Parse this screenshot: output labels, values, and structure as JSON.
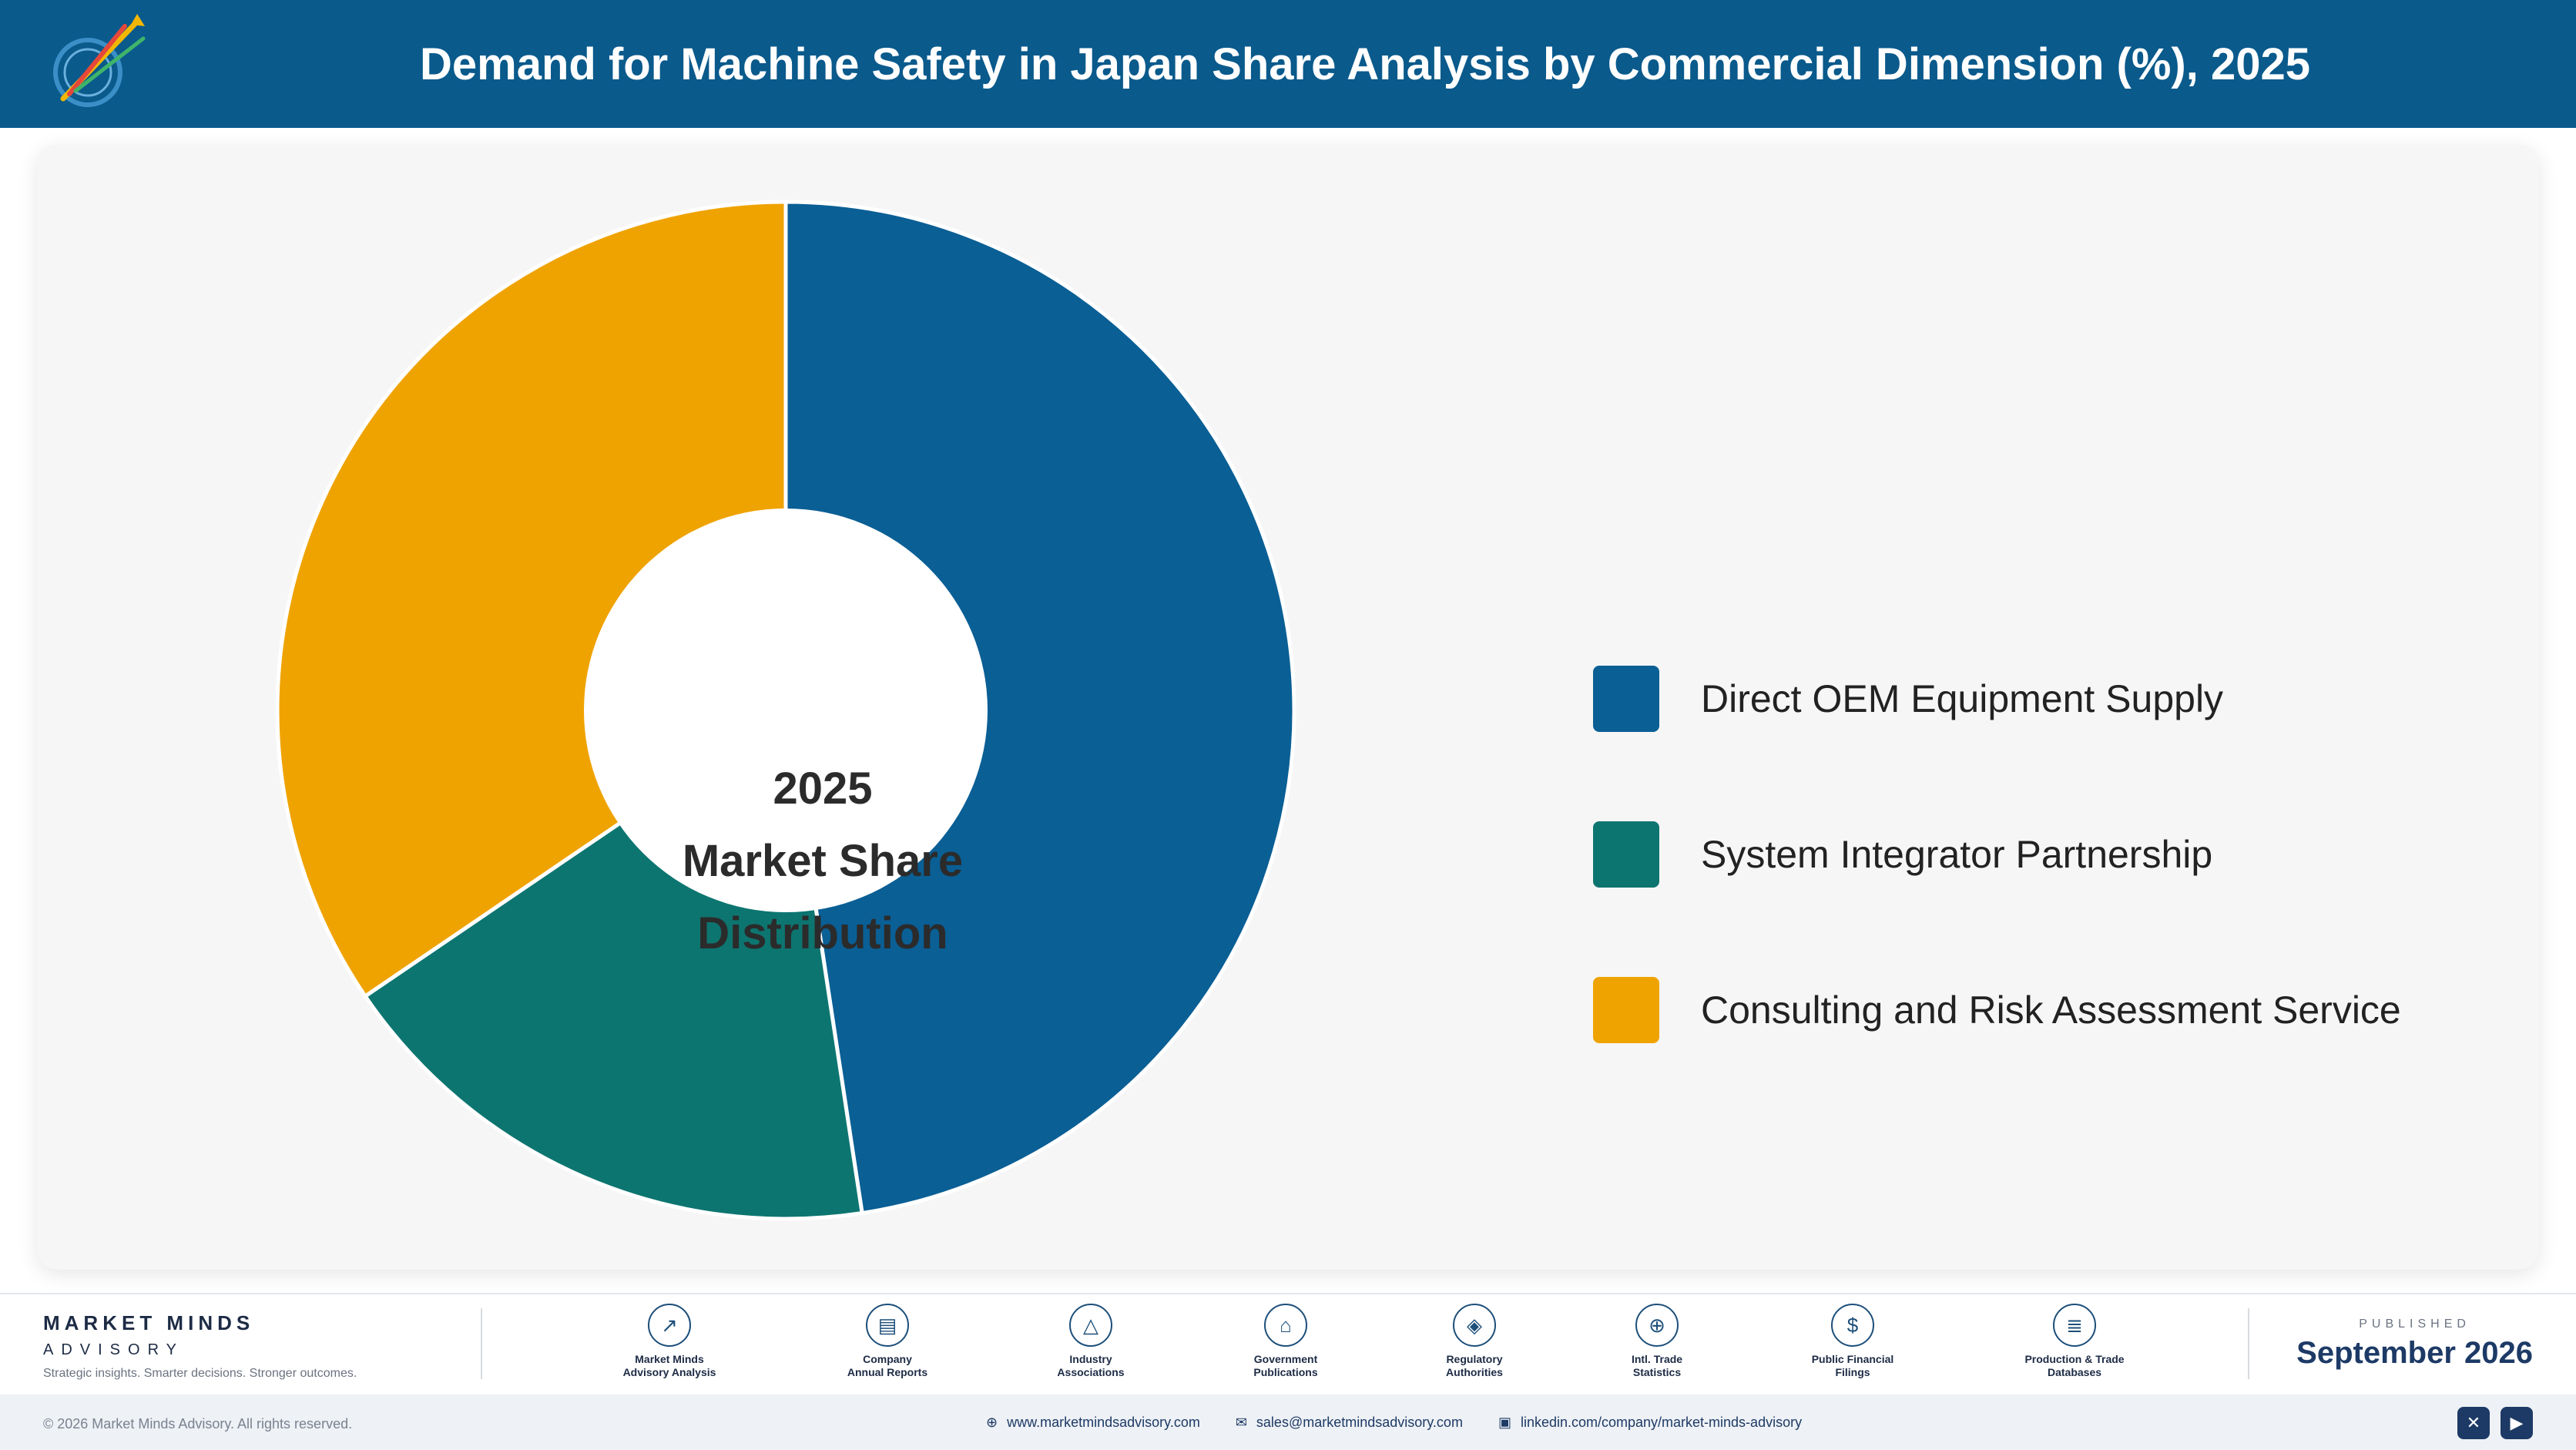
{
  "header": {
    "title": "Demand for Machine Safety in Japan Share Analysis by Commercial Dimension (%), 2025",
    "logo_icon": "market-minds-logo"
  },
  "chart_data": {
    "type": "pie",
    "donut": true,
    "center_text": [
      "2025",
      "Market Share",
      "Distribution"
    ],
    "categories": [
      "Direct OEM Equipment Supply",
      "System Integrator Partnership",
      "Consulting and Risk Assessment Service"
    ],
    "values": [
      47.6,
      17.9,
      34.5
    ],
    "unit": "%",
    "colors": [
      "#0a5f95",
      "#0d7570",
      "#efa300"
    ],
    "legend_position": "right"
  },
  "footer": {
    "brand_name": "MARKET MINDS",
    "brand_sub": "ADVISORY",
    "tagline": "Strategic insights. Smarter decisions. Stronger outcomes.",
    "sources": [
      {
        "line1": "Market Minds",
        "line2": "Advisory Analysis",
        "icon": "chart-line-icon",
        "glyph": "↗"
      },
      {
        "line1": "Company",
        "line2": "Annual Reports",
        "icon": "document-icon",
        "glyph": "▤"
      },
      {
        "line1": "Industry",
        "line2": "Associations",
        "icon": "network-icon",
        "glyph": "△"
      },
      {
        "line1": "Government",
        "line2": "Publications",
        "icon": "building-icon",
        "glyph": "⌂"
      },
      {
        "line1": "Regulatory",
        "line2": "Authorities",
        "icon": "shield-icon",
        "glyph": "◈"
      },
      {
        "line1": "Intl. Trade",
        "line2": "Statistics",
        "icon": "globe-icon",
        "glyph": "⊕"
      },
      {
        "line1": "Public Financial",
        "line2": "Filings",
        "icon": "dollar-icon",
        "glyph": "$"
      },
      {
        "line1": "Production & Trade",
        "line2": "Databases",
        "icon": "database-icon",
        "glyph": "≣"
      }
    ],
    "published_label": "PUBLISHED",
    "published_date": "September 2026",
    "copyright": "© 2026 Market Minds Advisory. All rights reserved.",
    "website": "www.marketmindsadvisory.com",
    "email": "sales@marketmindsadvisory.com",
    "linkedin": "linkedin.com/company/market-minds-advisory",
    "social_icons": [
      "x-icon",
      "youtube-icon"
    ]
  }
}
